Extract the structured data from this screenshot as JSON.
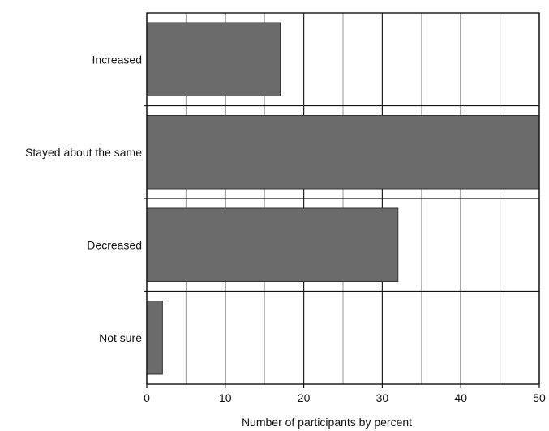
{
  "colors": {
    "bar": "#6b6b6b",
    "grid_major": "#222222",
    "grid_minor": "#9a9a9a",
    "frame": "#111111",
    "text": "#111111"
  },
  "chart_data": {
    "type": "bar",
    "orientation": "horizontal",
    "categories": [
      "Increased",
      "Stayed about the same",
      "Decreased",
      "Not sure"
    ],
    "values": [
      17,
      50,
      32,
      2
    ],
    "xlabel": "Number of participants by percent",
    "ylabel": "",
    "xlim": [
      0,
      50
    ],
    "xticks": [
      "0",
      "10",
      "20",
      "30",
      "40",
      "50"
    ],
    "grid": true
  }
}
